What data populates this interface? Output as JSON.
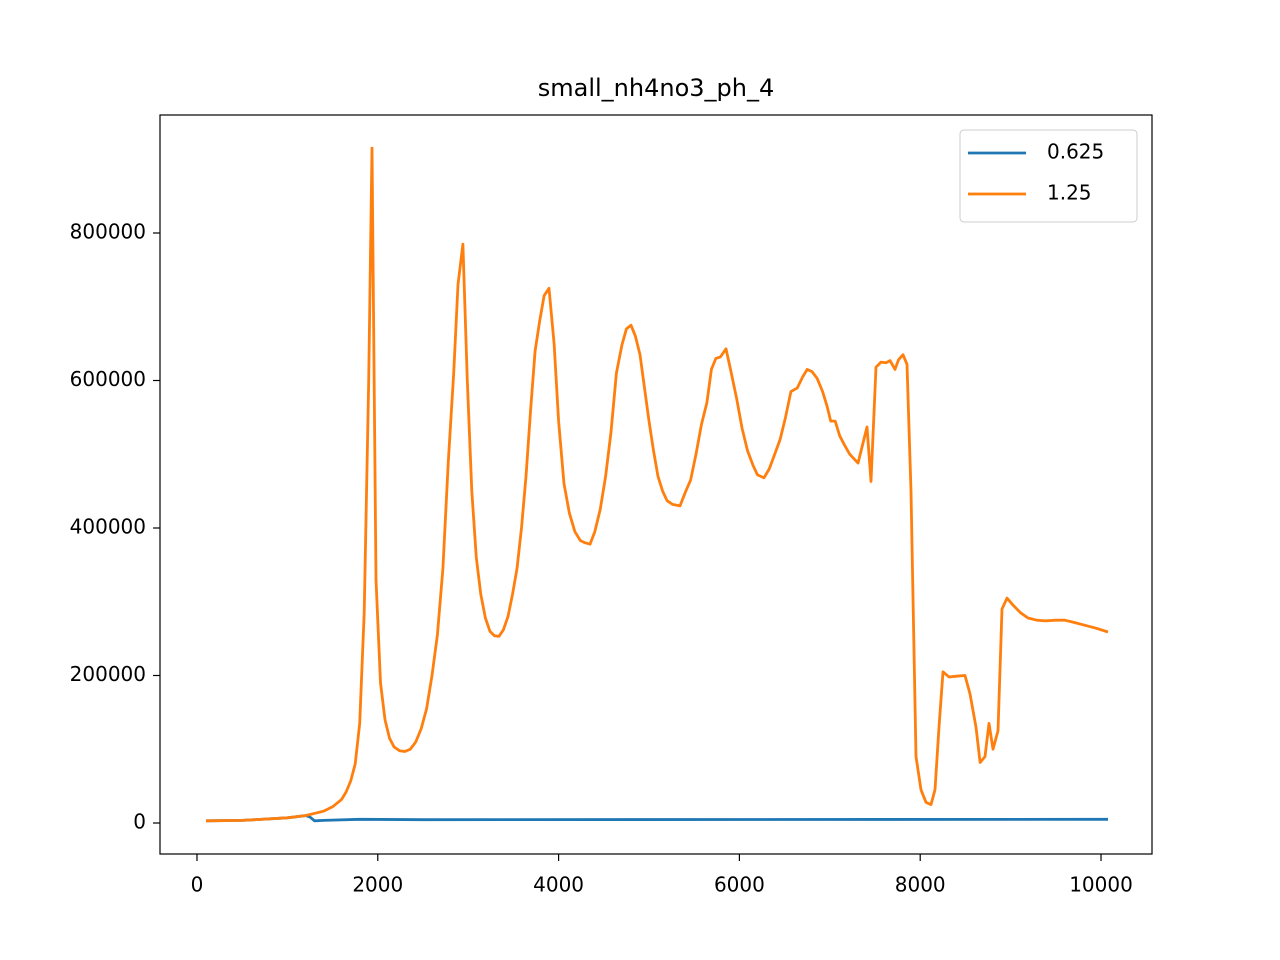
{
  "chart_data": {
    "type": "line",
    "title": "small_nh4no3_ph_4",
    "xlim": [
      -409,
      10564
    ],
    "ylim": [
      -42034,
      960000
    ],
    "xticks": [
      0,
      2000,
      4000,
      6000,
      8000,
      10000
    ],
    "yticks": [
      0,
      200000,
      400000,
      600000,
      800000
    ],
    "legend": "upper right",
    "series": [
      {
        "name": "0.625",
        "color": "#1f77b4",
        "x": [
          100,
          500,
          1000,
          1200,
          1250,
          1300,
          1400,
          1800,
          2500,
          10077
        ],
        "values": [
          3000,
          3500,
          7000,
          10000,
          8000,
          3000,
          3500,
          5000,
          4500,
          5000
        ]
      },
      {
        "name": "1.25",
        "color": "#ff7f0e",
        "x": [
          100,
          500,
          1000,
          1200,
          1400,
          1500,
          1600,
          1650,
          1700,
          1750,
          1800,
          1850,
          1900,
          1936,
          1980,
          2030,
          2080,
          2130,
          2180,
          2240,
          2300,
          2360,
          2420,
          2480,
          2540,
          2600,
          2660,
          2720,
          2780,
          2840,
          2887,
          2942,
          2990,
          3040,
          3090,
          3140,
          3190,
          3240,
          3290,
          3340,
          3390,
          3440,
          3490,
          3540,
          3590,
          3640,
          3690,
          3740,
          3790,
          3840,
          3894,
          3950,
          4000,
          4060,
          4120,
          4180,
          4240,
          4290,
          4347,
          4400,
          4460,
          4520,
          4580,
          4640,
          4700,
          4750,
          4801,
          4850,
          4900,
          4950,
          5000,
          5050,
          5100,
          5150,
          5200,
          5260,
          5343,
          5400,
          5460,
          5520,
          5580,
          5640,
          5690,
          5740,
          5790,
          5852,
          5910,
          5970,
          6030,
          6090,
          6150,
          6200,
          6272,
          6330,
          6390,
          6450,
          6510,
          6570,
          6640,
          6700,
          6750,
          6803,
          6860,
          6920,
          6970,
          7010,
          7060,
          7110,
          7160,
          7220,
          7312,
          7411,
          7456,
          7511,
          7566,
          7620,
          7666,
          7721,
          7760,
          7810,
          7854,
          7898,
          7954,
          8009,
          8064,
          8119,
          8164,
          8208,
          8252,
          8319,
          8400,
          8496,
          8551,
          8617,
          8662,
          8717,
          8761,
          8805,
          8861,
          8905,
          8960,
          9030,
          9110,
          9192,
          9290,
          9380,
          9500,
          9601,
          9700,
          9823,
          9950,
          10077
        ],
        "values": [
          3000,
          3500,
          7000,
          10000,
          16000,
          22000,
          32000,
          42000,
          57000,
          80000,
          135000,
          285000,
          600000,
          915000,
          330000,
          190000,
          140000,
          115000,
          103000,
          98000,
          97000,
          100000,
          110000,
          128000,
          155000,
          200000,
          255000,
          345000,
          490000,
          610000,
          730000,
          785000,
          600000,
          450000,
          360000,
          310000,
          278000,
          260000,
          254000,
          253000,
          262000,
          280000,
          310000,
          345000,
          400000,
          470000,
          560000,
          640000,
          680000,
          715000,
          725000,
          650000,
          545000,
          460000,
          420000,
          395000,
          383000,
          380000,
          378000,
          395000,
          425000,
          470000,
          530000,
          610000,
          648000,
          670000,
          675000,
          660000,
          635000,
          590000,
          545000,
          505000,
          470000,
          450000,
          437000,
          432000,
          430000,
          448000,
          465000,
          500000,
          540000,
          570000,
          615000,
          630000,
          632000,
          643000,
          610000,
          575000,
          535000,
          505000,
          485000,
          472000,
          468000,
          480000,
          500000,
          520000,
          550000,
          585000,
          590000,
          605000,
          615000,
          612000,
          603000,
          585000,
          565000,
          545000,
          545000,
          525000,
          513000,
          500000,
          488000,
          537000,
          463000,
          618000,
          625000,
          624000,
          627000,
          615000,
          628000,
          635000,
          622000,
          450000,
          90000,
          45000,
          28000,
          25000,
          45000,
          130000,
          205000,
          198000,
          199000,
          200000,
          175000,
          130000,
          82000,
          90000,
          135000,
          100000,
          125000,
          290000,
          305000,
          295000,
          285000,
          278000,
          275000,
          274000,
          275000,
          275000,
          272000,
          268000,
          264000,
          259000
        ]
      }
    ]
  }
}
